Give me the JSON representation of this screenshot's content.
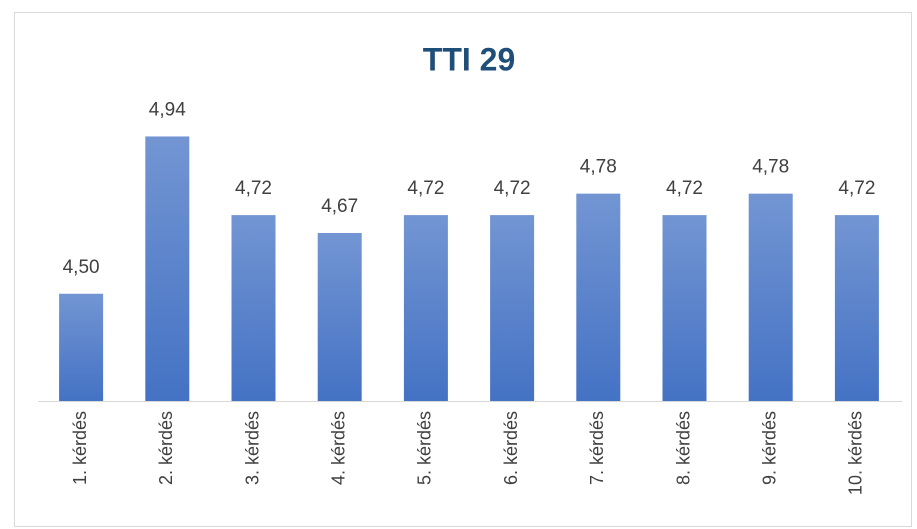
{
  "chart_data": {
    "type": "bar",
    "title": "TTI 29",
    "categories": [
      "1. kérdés",
      "2. kérdés",
      "3. kérdés",
      "4. kérdés",
      "5. kérdés",
      "6. kérdés",
      "7. kérdés",
      "8. kérdés",
      "9. kérdés",
      "10. kérdés"
    ],
    "values": [
      4.5,
      4.94,
      4.72,
      4.67,
      4.72,
      4.72,
      4.78,
      4.72,
      4.78,
      4.72
    ],
    "value_labels": [
      "4,50",
      "4,94",
      "4,72",
      "4,67",
      "4,72",
      "4,72",
      "4,78",
      "4,72",
      "4,78",
      "4,72"
    ],
    "color": "#4472c4",
    "ylim": [
      4.2,
      5.0
    ]
  }
}
